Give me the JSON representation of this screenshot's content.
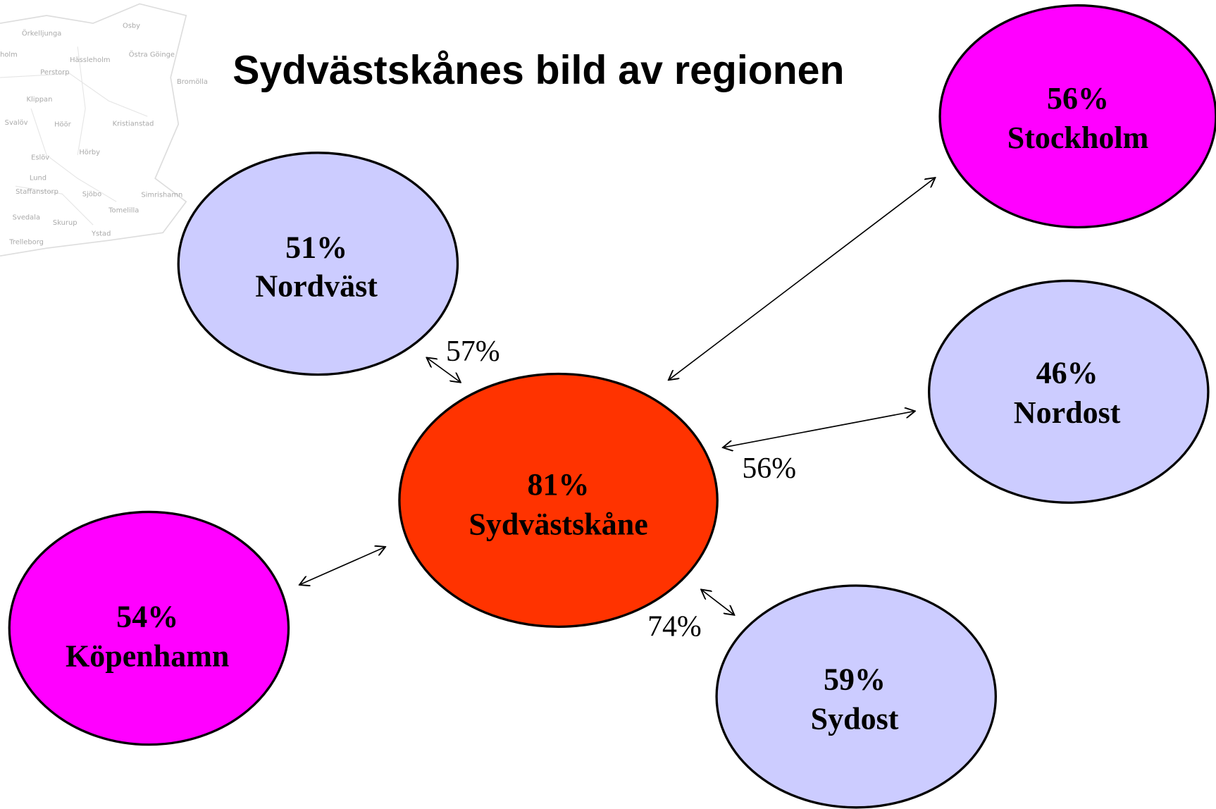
{
  "title": "Sydvästskånes bild av regionen",
  "nodes": [
    {
      "value": "56%",
      "label": "Stockholm"
    },
    {
      "value": "51%",
      "label": "Nordväst"
    },
    {
      "value": "46%",
      "label": "Nordost"
    },
    {
      "value": "81%",
      "label": "Sydvästskåne"
    },
    {
      "value": "54%",
      "label": "Köpenhamn"
    },
    {
      "value": "59%",
      "label": "Sydost"
    }
  ],
  "edge_labels": [
    "57%",
    "56%",
    "74%"
  ],
  "map_labels": [
    "Örkelljunga",
    "Osby",
    "holm",
    "Hässleholm",
    "Östra Göinge",
    "Perstorp",
    "Bromölla",
    "Klippan",
    "Svalöv",
    "Höör",
    "Kristianstad",
    "Eslöv",
    "Hörby",
    "Lund",
    "Staffanstorp",
    "Sjöbo",
    "Simrishamn",
    "Tomelilla",
    "Svedala",
    "Skurup",
    "Ystad",
    "Trelleborg"
  ]
}
